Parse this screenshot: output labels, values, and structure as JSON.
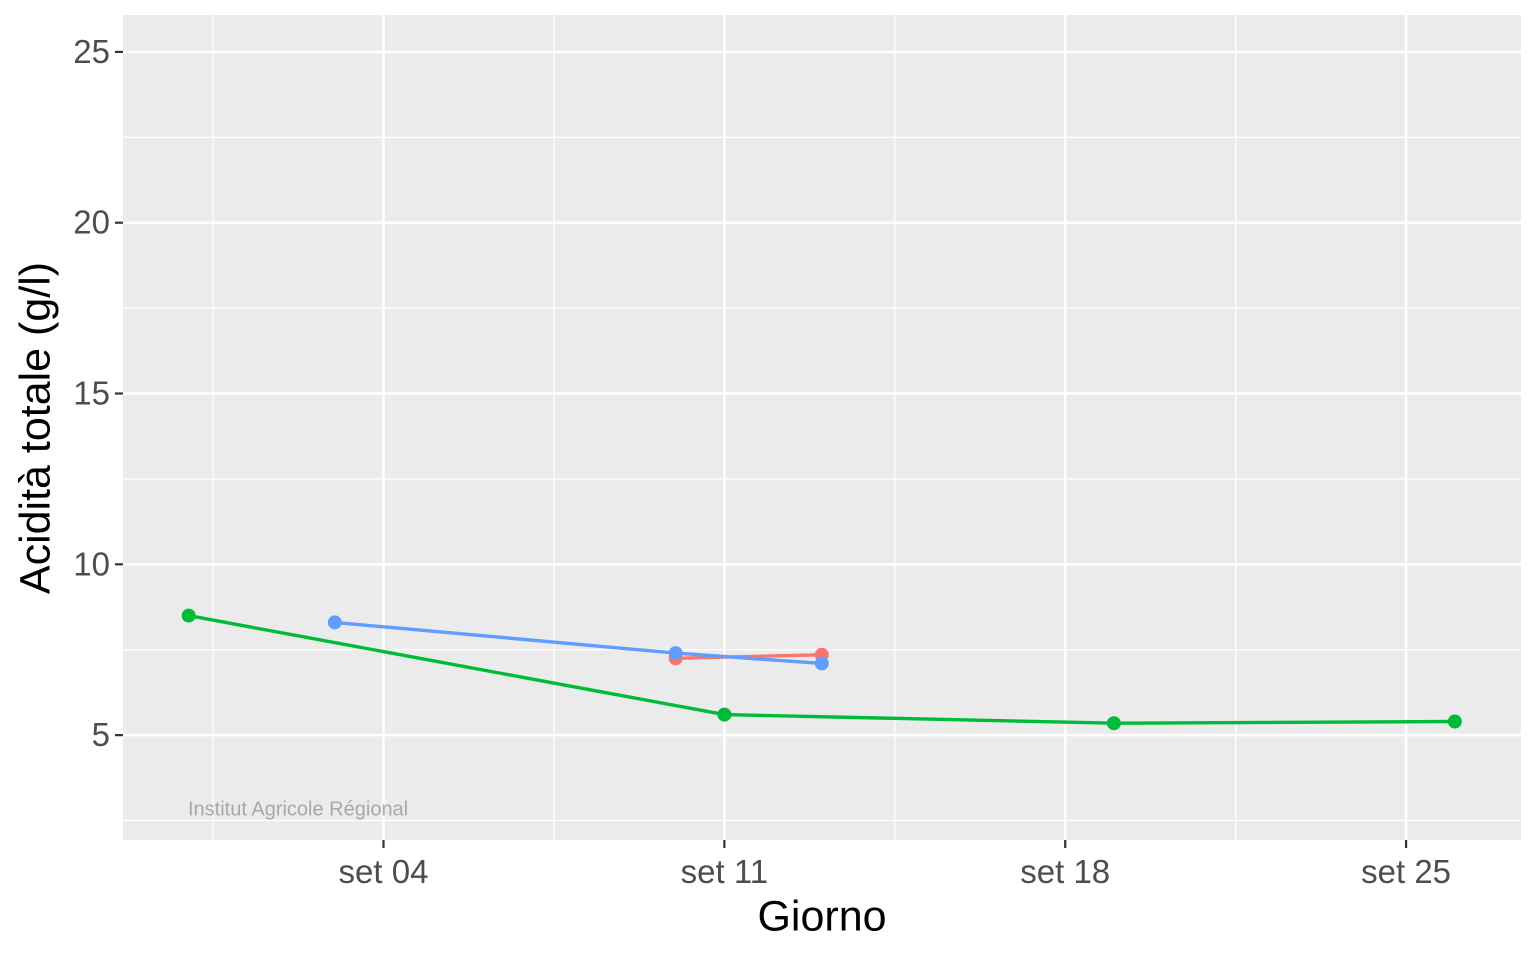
{
  "chart_data": {
    "type": "line",
    "title": "",
    "xlabel": "Giorno",
    "ylabel": "Acidità totale (g/l)",
    "watermark": "Institut Agricole Régional",
    "x_unit_note": "x values are days, 0 = ago 31 (Aug 31), 4 = set 04 (Sep 04)",
    "xlim": [
      -1.35,
      27.36
    ],
    "ylim": [
      1.93,
      26.08
    ],
    "grid": true,
    "legend": "none",
    "x_ticks": [
      {
        "value": 4,
        "label": "set 04"
      },
      {
        "value": 11,
        "label": "set 11"
      },
      {
        "value": 18,
        "label": "set 18"
      },
      {
        "value": 25,
        "label": "set 25"
      }
    ],
    "y_ticks": [
      {
        "value": 5,
        "label": "5"
      },
      {
        "value": 10,
        "label": "10"
      },
      {
        "value": 15,
        "label": "15"
      },
      {
        "value": 20,
        "label": "20"
      },
      {
        "value": 25,
        "label": "25"
      }
    ],
    "x_minor": [
      0.5,
      7.5,
      14.5,
      21.5
    ],
    "y_minor": [
      2.5,
      7.5,
      12.5,
      17.5,
      22.5
    ],
    "series": [
      {
        "name": "series-red",
        "color": "#F8766D",
        "points": [
          {
            "day": "set 10",
            "x": 10,
            "y": 7.25
          },
          {
            "day": "set 13",
            "x": 13,
            "y": 7.35
          }
        ]
      },
      {
        "name": "series-green",
        "color": "#00BA38",
        "points": [
          {
            "day": "ago 31",
            "x": 0,
            "y": 8.5
          },
          {
            "day": "set 11",
            "x": 11,
            "y": 5.6
          },
          {
            "day": "set 19",
            "x": 19,
            "y": 5.35
          },
          {
            "day": "set 26",
            "x": 26,
            "y": 5.4
          }
        ]
      },
      {
        "name": "series-blue",
        "color": "#619CFF",
        "points": [
          {
            "day": "set 03",
            "x": 3,
            "y": 8.3
          },
          {
            "day": "set 10",
            "x": 10,
            "y": 7.4
          },
          {
            "day": "set 13",
            "x": 13,
            "y": 7.1
          }
        ]
      }
    ],
    "colors": {
      "figure_bg": "#FFFFFF",
      "panel_bg": "#EBEBEB",
      "grid": "#FFFFFF",
      "tick_mark": "#333333",
      "tick_label": "#4D4D4D",
      "axis_title": "#000000",
      "watermark": "#A8A8A8"
    }
  }
}
